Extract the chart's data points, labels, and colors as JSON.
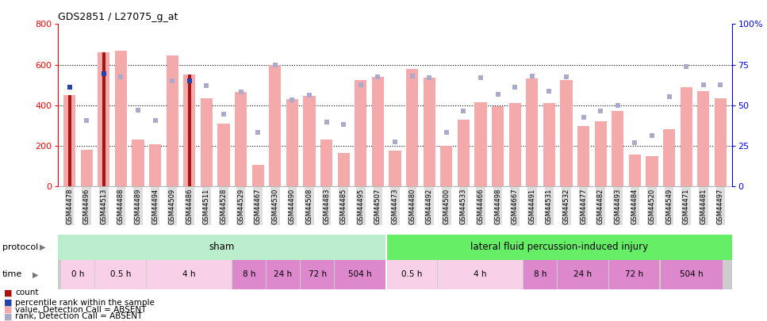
{
  "title": "GDS2851 / L27075_g_at",
  "samples": [
    "GSM44478",
    "GSM44496",
    "GSM44513",
    "GSM44488",
    "GSM44489",
    "GSM44494",
    "GSM44509",
    "GSM44486",
    "GSM44511",
    "GSM44528",
    "GSM44529",
    "GSM44467",
    "GSM44530",
    "GSM44490",
    "GSM44508",
    "GSM44483",
    "GSM44485",
    "GSM44495",
    "GSM44507",
    "GSM44473",
    "GSM44480",
    "GSM44492",
    "GSM44500",
    "GSM44533",
    "GSM44466",
    "GSM44498",
    "GSM44667",
    "GSM44491",
    "GSM44531",
    "GSM44532",
    "GSM44477",
    "GSM44482",
    "GSM44493",
    "GSM44484",
    "GSM44520",
    "GSM44549",
    "GSM44471",
    "GSM44481",
    "GSM44497"
  ],
  "bar_values": [
    450,
    180,
    660,
    670,
    230,
    205,
    645,
    550,
    435,
    310,
    465,
    105,
    600,
    430,
    445,
    230,
    165,
    525,
    540,
    175,
    580,
    535,
    200,
    330,
    415,
    395,
    410,
    530,
    410,
    525,
    295,
    320,
    370,
    155,
    150,
    280,
    490,
    470,
    435
  ],
  "count_flag": [
    true,
    false,
    true,
    false,
    false,
    false,
    false,
    true,
    false,
    false,
    false,
    false,
    false,
    false,
    false,
    false,
    false,
    false,
    false,
    false,
    false,
    false,
    false,
    false,
    false,
    false,
    false,
    false,
    false,
    false,
    false,
    false,
    false,
    false,
    false,
    false,
    false,
    false,
    false
  ],
  "rank_values": [
    490,
    325,
    555,
    540,
    375,
    325,
    520,
    520,
    495,
    355,
    465,
    265,
    600,
    425,
    450,
    315,
    305,
    500,
    540,
    220,
    545,
    535,
    265,
    370,
    535,
    455,
    490,
    545,
    470,
    540,
    340,
    370,
    400,
    215,
    250,
    440,
    590,
    500,
    500
  ],
  "rank_dark_flag": [
    true,
    false,
    true,
    false,
    false,
    false,
    false,
    true,
    false,
    false,
    false,
    false,
    false,
    false,
    false,
    false,
    false,
    false,
    false,
    false,
    false,
    false,
    false,
    false,
    false,
    false,
    false,
    false,
    false,
    false,
    false,
    false,
    false,
    false,
    false,
    false,
    false,
    false,
    false
  ],
  "sham_count": 19,
  "n_total": 39,
  "bar_pink": "#F4AAAA",
  "bar_dark_red": "#AA1111",
  "rank_blue_light": "#AAAACC",
  "rank_blue_dark": "#2244AA",
  "sham_color_light": "#C8F0C8",
  "sham_color_dark": "#66DD66",
  "injury_color": "#55DD55",
  "time_pink": "#F0C0D8",
  "time_purple": "#DD88CC",
  "yticks_left": [
    0,
    200,
    400,
    600,
    800
  ],
  "yticks_right_vals": [
    0,
    200,
    400,
    600,
    800
  ],
  "yticks_right_labels": [
    "0",
    "25",
    "50",
    "75",
    "100%"
  ],
  "sham_time_spans": [
    2,
    3,
    5,
    2,
    2,
    2,
    3
  ],
  "sham_time_labels": [
    "0 h",
    "0.5 h",
    "4 h",
    "8 h",
    "24 h",
    "72 h",
    "504 h"
  ],
  "injury_time_spans": [
    3,
    5,
    2,
    3,
    3,
    4
  ],
  "injury_time_labels": [
    "0.5 h",
    "4 h",
    "8 h",
    "24 h",
    "72 h",
    "504 h"
  ],
  "sham_time_colors": [
    "#F8D0E8",
    "#F8D0E8",
    "#F8D0E8",
    "#DD88CC",
    "#DD88CC",
    "#DD88CC",
    "#DD88CC"
  ],
  "injury_time_colors": [
    "#F8D0E8",
    "#F8D0E8",
    "#DD88CC",
    "#DD88CC",
    "#DD88CC",
    "#DD88CC"
  ]
}
